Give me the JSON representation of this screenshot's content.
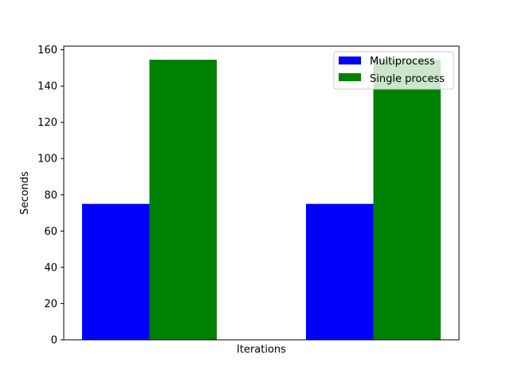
{
  "chart_data": {
    "type": "bar",
    "title": "",
    "xlabel": "Iterations",
    "ylabel": "Seconds",
    "ylim": [
      0,
      162
    ],
    "yticks": [
      0,
      20,
      40,
      60,
      80,
      100,
      120,
      140,
      160
    ],
    "groups": 2,
    "legend_position": "top-right",
    "grid": false,
    "series": [
      {
        "name": "Multiprocess",
        "color": "#0000ff",
        "values": [
          75,
          75
        ]
      },
      {
        "name": "Single process",
        "color": "#008000",
        "values": [
          154.5,
          154.5
        ]
      }
    ]
  }
}
